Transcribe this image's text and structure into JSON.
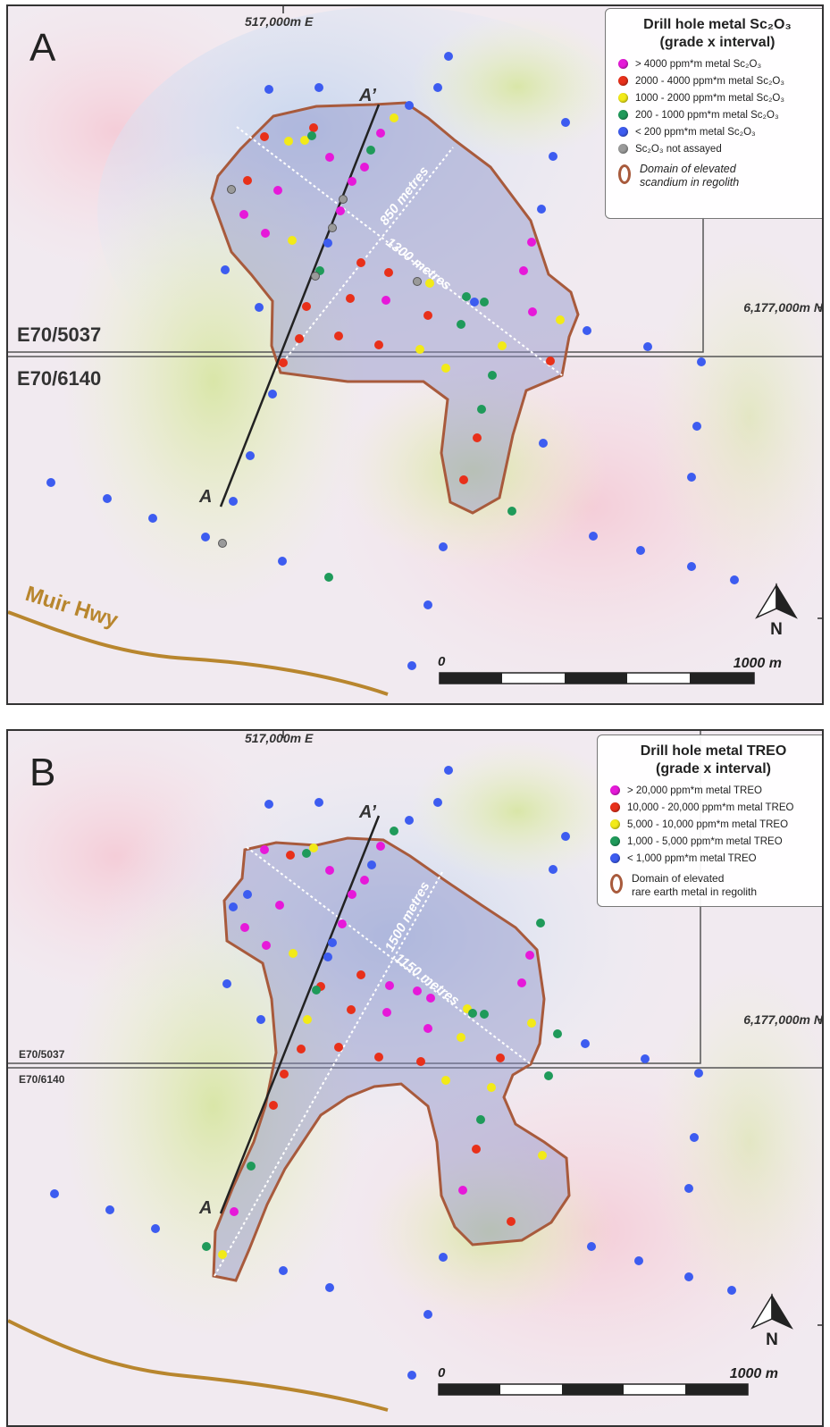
{
  "panels": [
    {
      "id": "A",
      "label": "A",
      "easting_label": "517,000m E",
      "northing_label": "6,177,000m N",
      "tenement_north": "E70/5037",
      "tenement_south": "E70/6140",
      "road_label": "Muir Hwy",
      "section_start": "A",
      "section_end": "A’",
      "dimension_1": "850 metres",
      "dimension_2": "1300 metres",
      "scale_start": "0",
      "scale_end": "1000 m",
      "north_label": "N",
      "legend": {
        "title_line1": "Drill hole metal Sc₂O₃",
        "title_line2": "(grade x interval)",
        "items": [
          {
            "color": "#e619d9",
            "label": "> 4000 ppm*m metal Sc₂O₃"
          },
          {
            "color": "#e8301a",
            "label": "2000 - 4000 ppm*m metal Sc₂O₃"
          },
          {
            "color": "#f2ea18",
            "label": "1000 - 2000 ppm*m metal Sc₂O₃"
          },
          {
            "color": "#1f9a5a",
            "label": "200 - 1000 ppm*m metal Sc₂O₃"
          },
          {
            "color": "#3d5cf0",
            "label": "< 200 ppm*m metal Sc₂O₃"
          },
          {
            "color": "#9a9a9a",
            "label": "Sc₂O₃ not assayed"
          }
        ],
        "domain_label": "Domain of elevated\nscandium in regolith"
      }
    },
    {
      "id": "B",
      "label": "B",
      "easting_label": "517,000m E",
      "northing_label": "6,177,000m N",
      "tenement_north": "E70/5037",
      "tenement_south": "E70/6140",
      "section_start": "A",
      "section_end": "A’",
      "dimension_1": "1500 metres",
      "dimension_2": "1150 metres",
      "scale_start": "0",
      "scale_end": "1000 m",
      "north_label": "N",
      "legend": {
        "title_line1": "Drill hole metal TREO",
        "title_line2": "(grade x interval)",
        "items": [
          {
            "color": "#e619d9",
            "label": "> 20,000 ppm*m metal TREO"
          },
          {
            "color": "#e8301a",
            "label": "10,000 - 20,000 ppm*m metal TREO"
          },
          {
            "color": "#f2ea18",
            "label": "5,000 - 10,000 ppm*m metal TREO"
          },
          {
            "color": "#1f9a5a",
            "label": "1,000 - 5,000 ppm*m metal TREO"
          },
          {
            "color": "#3d5cf0",
            "label": "< 1,000 ppm*m metal TREO"
          }
        ],
        "domain_label": "Domain of elevated\nrare earth metal in regolith"
      }
    }
  ],
  "colors": {
    "domain_outline": "#a85a3c",
    "road": "#b8862e",
    "section_line": "#222222"
  }
}
